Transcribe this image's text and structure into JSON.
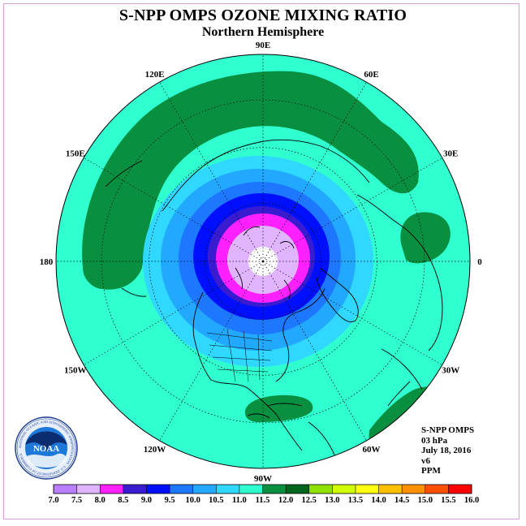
{
  "header": {
    "title": "S-NPP OMPS OZONE MIXING RATIO",
    "subtitle": "Northern Hemisphere"
  },
  "map": {
    "projection": "polar stereographic",
    "hemisphere": "north",
    "longitude_labels": [
      {
        "text": "90E",
        "lon": 90
      },
      {
        "text": "60E",
        "lon": 60
      },
      {
        "text": "30E",
        "lon": 30
      },
      {
        "text": "0",
        "lon": 0
      },
      {
        "text": "30W",
        "lon": -30
      },
      {
        "text": "60W",
        "lon": -60
      },
      {
        "text": "90W",
        "lon": -90
      },
      {
        "text": "120W",
        "lon": -120
      },
      {
        "text": "150W",
        "lon": -150
      },
      {
        "text": "180",
        "lon": 180
      },
      {
        "text": "150E",
        "lon": 150
      },
      {
        "text": "120E",
        "lon": 120
      }
    ]
  },
  "info": {
    "instrument": "S-NPP OMPS",
    "level": "03 hPa",
    "date": "July 18, 2016",
    "version": "v6",
    "units": "PPM"
  },
  "logo": {
    "name": "NOAA",
    "ring_text": "NATIONAL OCEANIC AND ATMOSPHERIC ADMINISTRATION · U.S. DEPARTMENT OF COMMERCE"
  },
  "colorbar": {
    "ticks": [
      "7.0",
      "7.5",
      "8.0",
      "8.5",
      "9.0",
      "9.5",
      "10.0",
      "10.5",
      "11.0",
      "11.5",
      "12.0",
      "12.5",
      "13.0",
      "13.5",
      "14.0",
      "14.5",
      "15.0",
      "15.5",
      "16.0"
    ],
    "colors": [
      "#b97fff",
      "#e0b4ff",
      "#ff20ff",
      "#3a1cd0",
      "#0010ff",
      "#1e78ff",
      "#22a8ff",
      "#30d8ff",
      "#30ffd0",
      "#089040",
      "#00641e",
      "#90e000",
      "#d0ff00",
      "#ffff10",
      "#ffc000",
      "#ff9000",
      "#ff5000",
      "#ff0000",
      "#a0522d"
    ]
  },
  "colors": {
    "background_field": "#30ffd0",
    "lowest_values": "#e0b4ff",
    "outline": "#000000"
  }
}
